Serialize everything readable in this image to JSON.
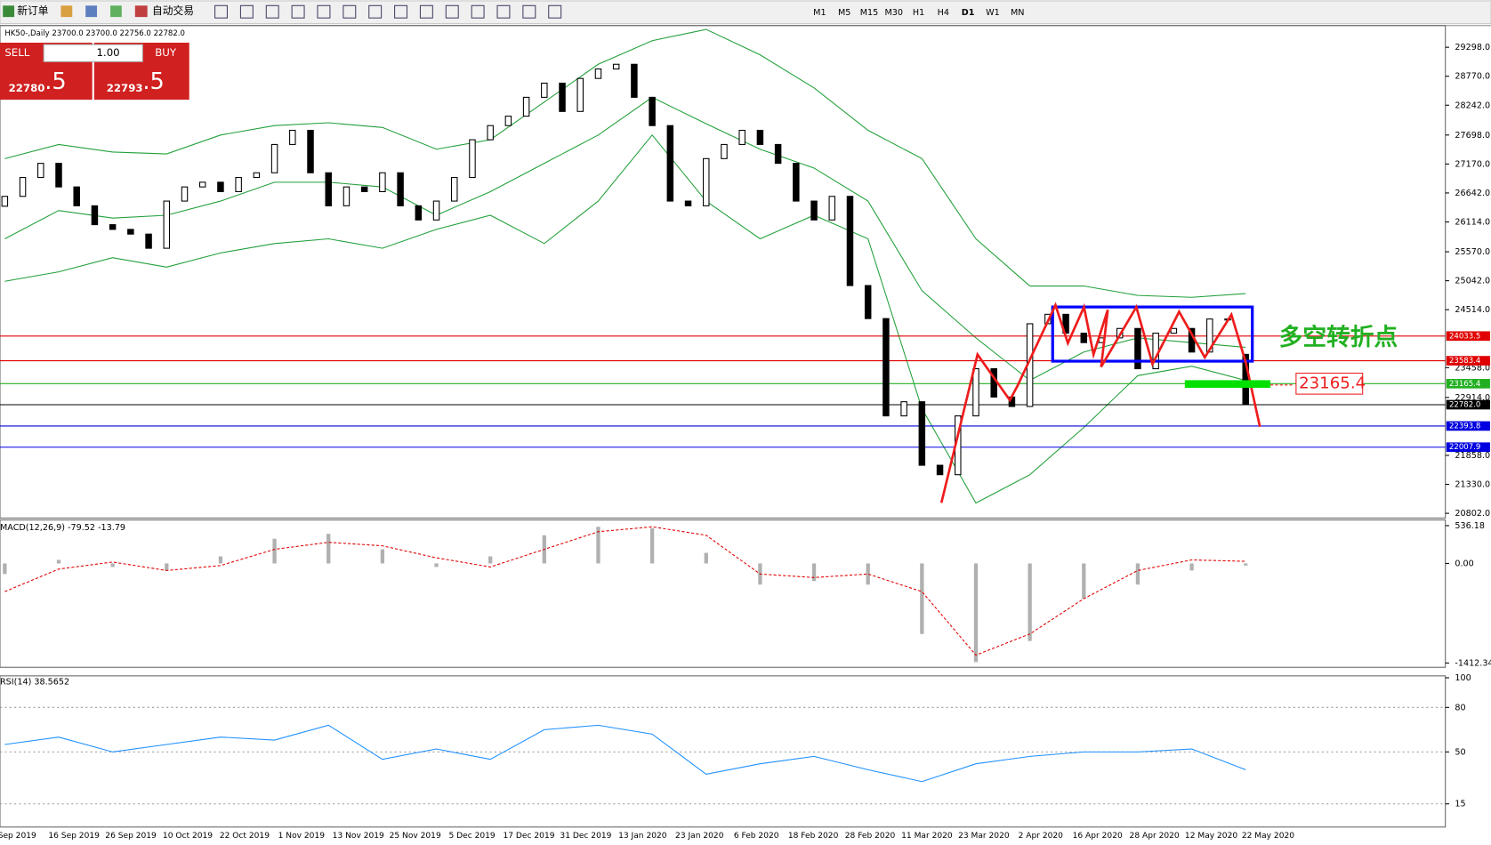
{
  "toolbar": {
    "new_order": "新订单",
    "auto_trading": "自动交易",
    "timeframes": [
      "M1",
      "M5",
      "M15",
      "M30",
      "H1",
      "H4",
      "D1",
      "W1",
      "MN"
    ]
  },
  "trade_panel": {
    "sell": "SELL",
    "buy": "BUY",
    "lots": "1.00",
    "sell_price": "22780",
    "sell_pips": ".5",
    "buy_price": "22793",
    "buy_pips": ".5"
  },
  "chart_data": [
    {
      "type": "candlestick",
      "title": "HK50-,Daily  23700.0 23700.0 22756.0 22782.0",
      "open": [
        26400,
        26580,
        26924,
        27182,
        26752,
        26408,
        26064,
        25978,
        25892,
        25634,
        26494,
        26752,
        26838,
        26666,
        26924,
        27010,
        27526,
        27784,
        27010,
        26408,
        26752,
        26666,
        27010,
        26408,
        26150,
        26494,
        26924,
        27612,
        27870,
        28042,
        28386,
        28644,
        28128,
        28730,
        28902,
        28988,
        28386,
        27870,
        26494,
        26408,
        27268,
        27526,
        27784,
        27526,
        27182,
        26494,
        26150,
        26580,
        24954,
        24352,
        22578,
        22836,
        21678,
        21506,
        22578,
        23438,
        22922,
        22750,
        24258,
        24430,
        24086,
        23914,
        24000,
        24172,
        23438,
        24086,
        24172,
        23742,
        24344,
        23700
      ],
      "close": [
        26580,
        26924,
        27182,
        26752,
        26408,
        26064,
        25978,
        25892,
        25634,
        26494,
        26752,
        26838,
        26666,
        26924,
        27010,
        27526,
        27784,
        27010,
        26408,
        26752,
        26666,
        27010,
        26408,
        26150,
        26494,
        26924,
        27612,
        27870,
        28042,
        28386,
        28644,
        28128,
        28730,
        28902,
        28988,
        28386,
        27870,
        26494,
        26408,
        27268,
        27526,
        27784,
        27526,
        27182,
        26494,
        26150,
        26580,
        24954,
        24352,
        22578,
        22836,
        21678,
        21506,
        22578,
        23438,
        22922,
        22750,
        24258,
        24430,
        24086,
        23914,
        24000,
        24172,
        23438,
        24086,
        24172,
        23742,
        24344,
        24344,
        22782
      ],
      "color_up": "#ffffff",
      "color_down": "#000000",
      "band_color": "#22a03a",
      "bands": {
        "upper": [
          27268,
          27526,
          27388,
          27354,
          27698,
          27870,
          27922,
          27836,
          27440,
          27612,
          28300,
          28988,
          29418,
          29624,
          29160,
          28558,
          27784,
          27268,
          25806,
          24946,
          24946,
          24774,
          24740,
          24808
        ],
        "middle": [
          25806,
          26322,
          26184,
          26236,
          26494,
          26838,
          26838,
          26752,
          26236,
          26666,
          27182,
          27698,
          28386,
          27904,
          27440,
          27096,
          26494,
          24860,
          24000,
          23226,
          23742,
          24000,
          23914,
          23828
        ],
        "lower": [
          25032,
          25204,
          25462,
          25290,
          25548,
          25720,
          25806,
          25634,
          25978,
          26236,
          25720,
          26494,
          27698,
          26494,
          25806,
          26236,
          25806,
          22710,
          20990,
          21506,
          22366,
          23312,
          23484,
          23226
        ]
      },
      "ylim": [
        20733,
        29659
      ],
      "yticks": [
        {
          "value": 29298,
          "label": "29298.0"
        },
        {
          "value": 28770,
          "label": "28770.0"
        },
        {
          "value": 28242,
          "label": "28242.0"
        },
        {
          "value": 27698,
          "label": "27698.0"
        },
        {
          "value": 27170,
          "label": "27170.0"
        },
        {
          "value": 26642,
          "label": "26642.0"
        },
        {
          "value": 26114,
          "label": "26114.0"
        },
        {
          "value": 25570,
          "label": "25570.0"
        },
        {
          "value": 25042,
          "label": "25042.0"
        },
        {
          "value": 24514,
          "label": "24514.0"
        },
        {
          "value": 23458,
          "label": "23458.0"
        },
        {
          "value": 22914,
          "label": "22914.0"
        },
        {
          "value": 21858,
          "label": "21858.0"
        },
        {
          "value": 21330,
          "label": "21330.0"
        },
        {
          "value": 20802,
          "label": "20802.0"
        }
      ],
      "levels": [
        {
          "value": 24033.5,
          "color": "#e00000"
        },
        {
          "value": 23583.4,
          "color": "#e00000"
        },
        {
          "value": 23165.4,
          "color": "#22b022"
        },
        {
          "value": 22782,
          "label": "22782.0",
          "color": "#000000"
        },
        {
          "value": 22393.8,
          "color": "#0000e0"
        },
        {
          "value": 22007.9,
          "color": "#0000e0"
        }
      ],
      "annotation": {
        "text": "多空转折点",
        "target": 23165.4
      },
      "x_labels": [
        "Sep 2019",
        "16 Sep 2019",
        "26 Sep 2019",
        "10 Oct 2019",
        "22 Oct 2019",
        "1 Nov 2019",
        "13 Nov 2019",
        "25 Nov 2019",
        "5 Dec 2019",
        "17 Dec 2019",
        "31 Dec 2019",
        "13 Jan 2020",
        "23 Jan 2020",
        "6 Feb 2020",
        "18 Feb 2020",
        "28 Feb 2020",
        "11 Mar 2020",
        "23 Mar 2020",
        "2 Apr 2020",
        "16 Apr 2020",
        "28 Apr 2020",
        "12 May 2020",
        "22 May 2020"
      ]
    },
    {
      "type": "macd",
      "title": "MACD(12,26,9) -79.52 -13.79",
      "histogram": [
        -150,
        50,
        -50,
        -100,
        100,
        350,
        420,
        200,
        -50,
        100,
        400,
        520,
        500,
        150,
        -300,
        -250,
        -300,
        -1000,
        -1400,
        -1100,
        -500,
        -300,
        -100,
        -30
      ],
      "signal": [
        -400,
        -80,
        20,
        -100,
        -30,
        200,
        300,
        250,
        80,
        -50,
        200,
        450,
        520,
        400,
        -150,
        -200,
        -150,
        -400,
        -1300,
        -1000,
        -500,
        -100,
        50,
        30
      ],
      "hist_color": "#b0b0b0",
      "signal_color": "#e00000",
      "ylim": [
        -1460,
        590
      ],
      "yticks": [
        536.18,
        {
          "value": 0,
          "label": "0.00"
        },
        -1412.34
      ]
    },
    {
      "type": "rsi",
      "title": "RSI(14) 38.5652",
      "values": [
        55,
        60,
        50,
        55,
        60,
        58,
        68,
        45,
        52,
        45,
        65,
        68,
        62,
        35,
        42,
        47,
        38,
        30,
        42,
        47,
        50,
        50,
        52,
        38
      ],
      "color": "#1e90ff",
      "ylim": [
        0,
        100
      ],
      "yticks": [
        100,
        80,
        50,
        15
      ]
    }
  ]
}
